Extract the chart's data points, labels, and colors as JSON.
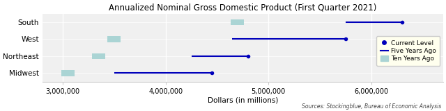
{
  "title": "Annualized Nominal Gross Domestic Product (First Quarter 2021)",
  "xlabel": "Dollars (in millions)",
  "source": "Sources: Stockingblue, Bureau of Economic Analysis",
  "regions": [
    "South",
    "West",
    "Northeast",
    "Midwest"
  ],
  "current_level": [
    6300000,
    5750000,
    4800000,
    4450000
  ],
  "five_years_ago": [
    5750000,
    4650000,
    4250000,
    3500000
  ],
  "ten_years_ago": [
    4700000,
    3500000,
    3350000,
    3050000
  ],
  "xlim": [
    2800000,
    6700000
  ],
  "xticks": [
    3000000,
    4000000,
    5000000,
    6000000
  ],
  "line_color": "#0000bb",
  "ten_years_color": "#aad4d4",
  "plot_bg_color": "#f0f0f0",
  "fig_bg_color": "#ffffff",
  "legend_bg": "#ffffee",
  "grid_color": "#ffffff",
  "spine_color": "#cccccc"
}
